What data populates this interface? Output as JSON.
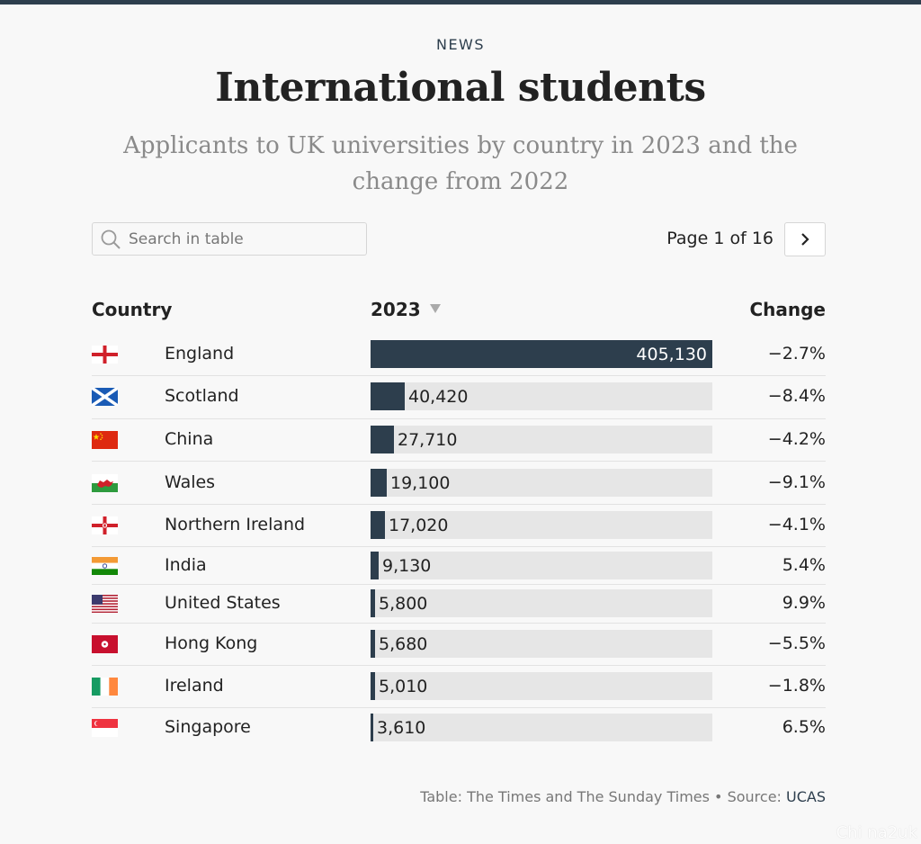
{
  "header": {
    "kicker": "NEWS",
    "title": "International students",
    "subtitle": "Applicants to UK universities by country in 2023 and the change from 2022"
  },
  "search": {
    "placeholder": "Search in table",
    "value": ""
  },
  "pager": {
    "label": "Page 1 of 16",
    "next_icon": "chevron-right-icon"
  },
  "table": {
    "columns": {
      "country": "Country",
      "year": "2023",
      "change": "Change"
    },
    "sort_icon": "sort-descending-icon"
  },
  "chart_data": {
    "type": "table",
    "columns": [
      "Country",
      "2023",
      "Change"
    ],
    "max_value": 405130,
    "rows": [
      {
        "country": "England",
        "value": 405130,
        "value_label": "405,130",
        "change": "−2.7%",
        "flag": "england-flag"
      },
      {
        "country": "Scotland",
        "value": 40420,
        "value_label": "40,420",
        "change": "−8.4%",
        "flag": "scotland-flag"
      },
      {
        "country": "China",
        "value": 27710,
        "value_label": "27,710",
        "change": "−4.2%",
        "flag": "china-flag"
      },
      {
        "country": "Wales",
        "value": 19100,
        "value_label": "19,100",
        "change": "−9.1%",
        "flag": "wales-flag"
      },
      {
        "country": "Northern Ireland",
        "value": 17020,
        "value_label": "17,020",
        "change": "−4.1%",
        "flag": "northern-ireland-flag"
      },
      {
        "country": "India",
        "value": 9130,
        "value_label": "9,130",
        "change": "5.4%",
        "flag": "india-flag"
      },
      {
        "country": "United States",
        "value": 5800,
        "value_label": "5,800",
        "change": "9.9%",
        "flag": "usa-flag"
      },
      {
        "country": "Hong Kong",
        "value": 5680,
        "value_label": "5,680",
        "change": "−5.5%",
        "flag": "hong-kong-flag"
      },
      {
        "country": "Ireland",
        "value": 5010,
        "value_label": "5,010",
        "change": "−1.8%",
        "flag": "ireland-flag"
      },
      {
        "country": "Singapore",
        "value": 3610,
        "value_label": "3,610",
        "change": "6.5%",
        "flag": "singapore-flag"
      }
    ]
  },
  "footer": {
    "credit": "Table: The Times and The Sunday Times • Source: ",
    "source": "UCAS"
  },
  "colors": {
    "bar": "#2d3e4d",
    "track": "#e6e6e6",
    "accent": "#2d3e4d",
    "background": "#f8f8f8"
  },
  "watermark": "Chi na2uk"
}
